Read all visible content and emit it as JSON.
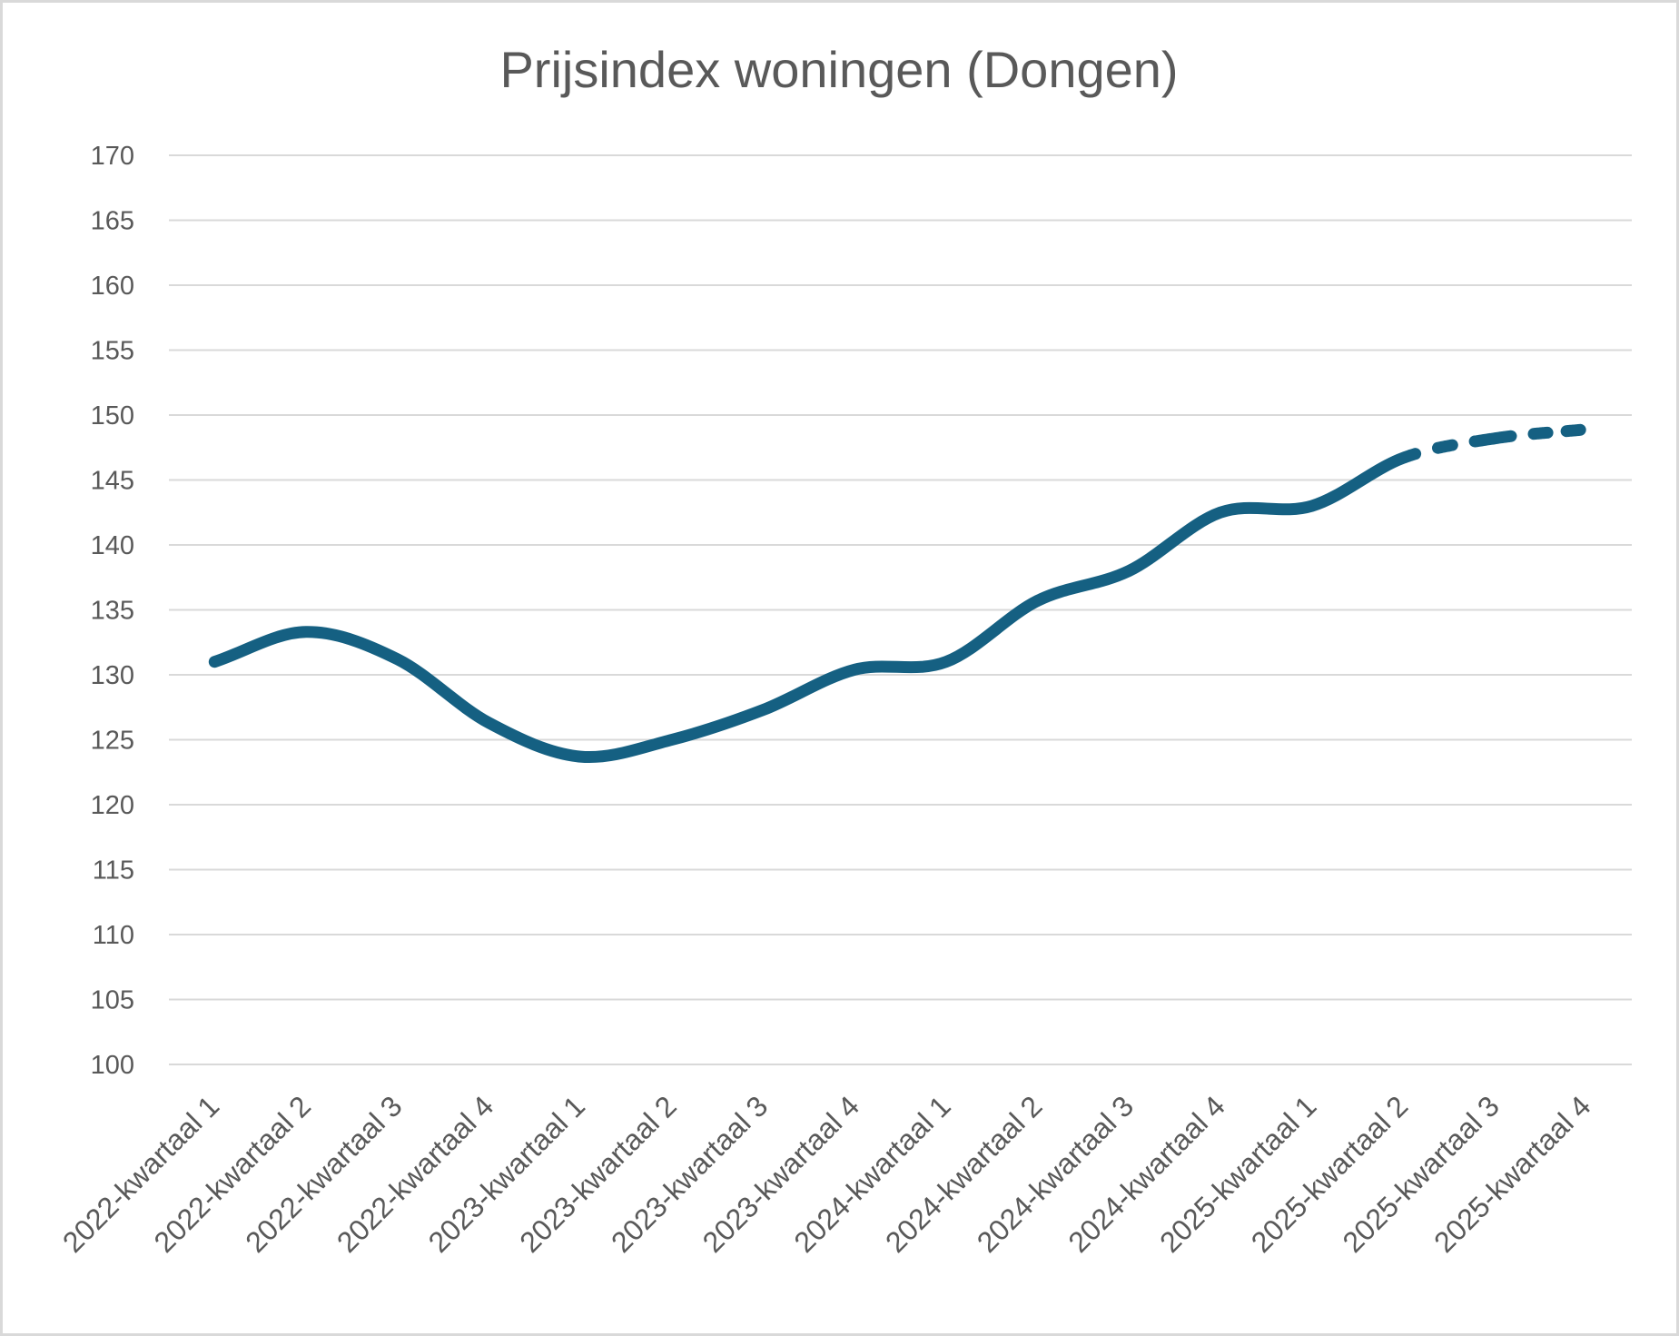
{
  "chart_data": {
    "type": "line",
    "title": "Prijsindex woningen (Dongen)",
    "categories": [
      "2022-kwartaal 1",
      "2022-kwartaal 2",
      "2022-kwartaal 3",
      "2022-kwartaal 4",
      "2023-kwartaal 1",
      "2023-kwartaal 2",
      "2023-kwartaal 3",
      "2023-kwartaal 4",
      "2024-kwartaal 1",
      "2024-kwartaal 2",
      "2024-kwartaal 3",
      "2024-kwartaal 4",
      "2025-kwartaal 1",
      "2025-kwartaal 2",
      "2025-kwartaal 3",
      "2025-kwartaal 4"
    ],
    "series": [
      {
        "name": "Prijsindex",
        "values": [
          131.0,
          133.3,
          131.2,
          126.3,
          123.7,
          125.0,
          127.3,
          130.4,
          131.0,
          135.7,
          138.0,
          142.5,
          143.0,
          146.7,
          148.2,
          148.9
        ]
      }
    ],
    "forecast_start_index": 13,
    "forecast_style": "dashed",
    "xlabel": "",
    "ylabel": "",
    "ylim": [
      100,
      170
    ],
    "ytick_step": 5,
    "grid": true,
    "legend": "none",
    "colors": {
      "line": "#156082",
      "gridline": "#D9D9D9",
      "text": "#595959",
      "border": "#D9D9D9",
      "background": "#FFFFFF"
    }
  }
}
